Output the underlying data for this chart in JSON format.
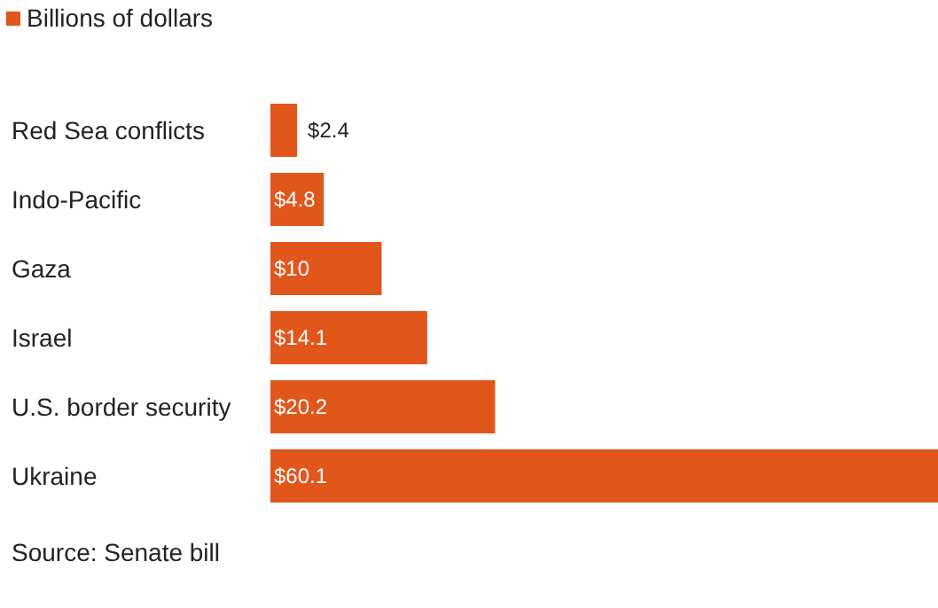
{
  "chart_data": {
    "type": "bar",
    "orientation": "horizontal",
    "categories": [
      "Red Sea conflicts",
      "Indo-Pacific",
      "Gaza",
      "Israel",
      "U.S. border security",
      "Ukraine"
    ],
    "series": [
      {
        "name": "Billions of dollars",
        "color": "#e0561b",
        "values": [
          2.4,
          4.8,
          10,
          14.1,
          20.2,
          60.1
        ],
        "value_labels": [
          "$2.4",
          "$4.8",
          "$10",
          "$14.1",
          "$20.2",
          "$60.1"
        ]
      }
    ],
    "legend": "top left",
    "grid": false,
    "annotations": [
      "Source: Senate bill"
    ]
  }
}
